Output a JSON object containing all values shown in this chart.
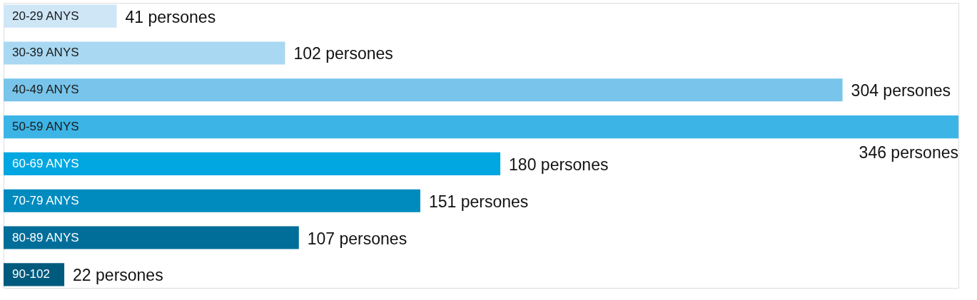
{
  "chart_data": {
    "type": "bar",
    "orientation": "horizontal",
    "categories": [
      "20-29 ANYS",
      "30-39 ANYS",
      "40-49 ANYS",
      "50-59 ANYS",
      "60-69 ANYS",
      "70-79 ANYS",
      "80-89 ANYS",
      "90-102"
    ],
    "values": [
      41,
      102,
      304,
      346,
      180,
      151,
      107,
      22
    ],
    "colors": [
      "#cfe6f7",
      "#a9d8f2",
      "#78c4ea",
      "#3db4e6",
      "#00a7e1",
      "#008bbf",
      "#006e99",
      "#005a7d"
    ],
    "value_labels": [
      "41 persones",
      "102 persones",
      "304 persones",
      "346 persones",
      "180 persones",
      "151 persones",
      "107 persones",
      "22 persones"
    ],
    "grid": false,
    "tick_labels": false
  }
}
